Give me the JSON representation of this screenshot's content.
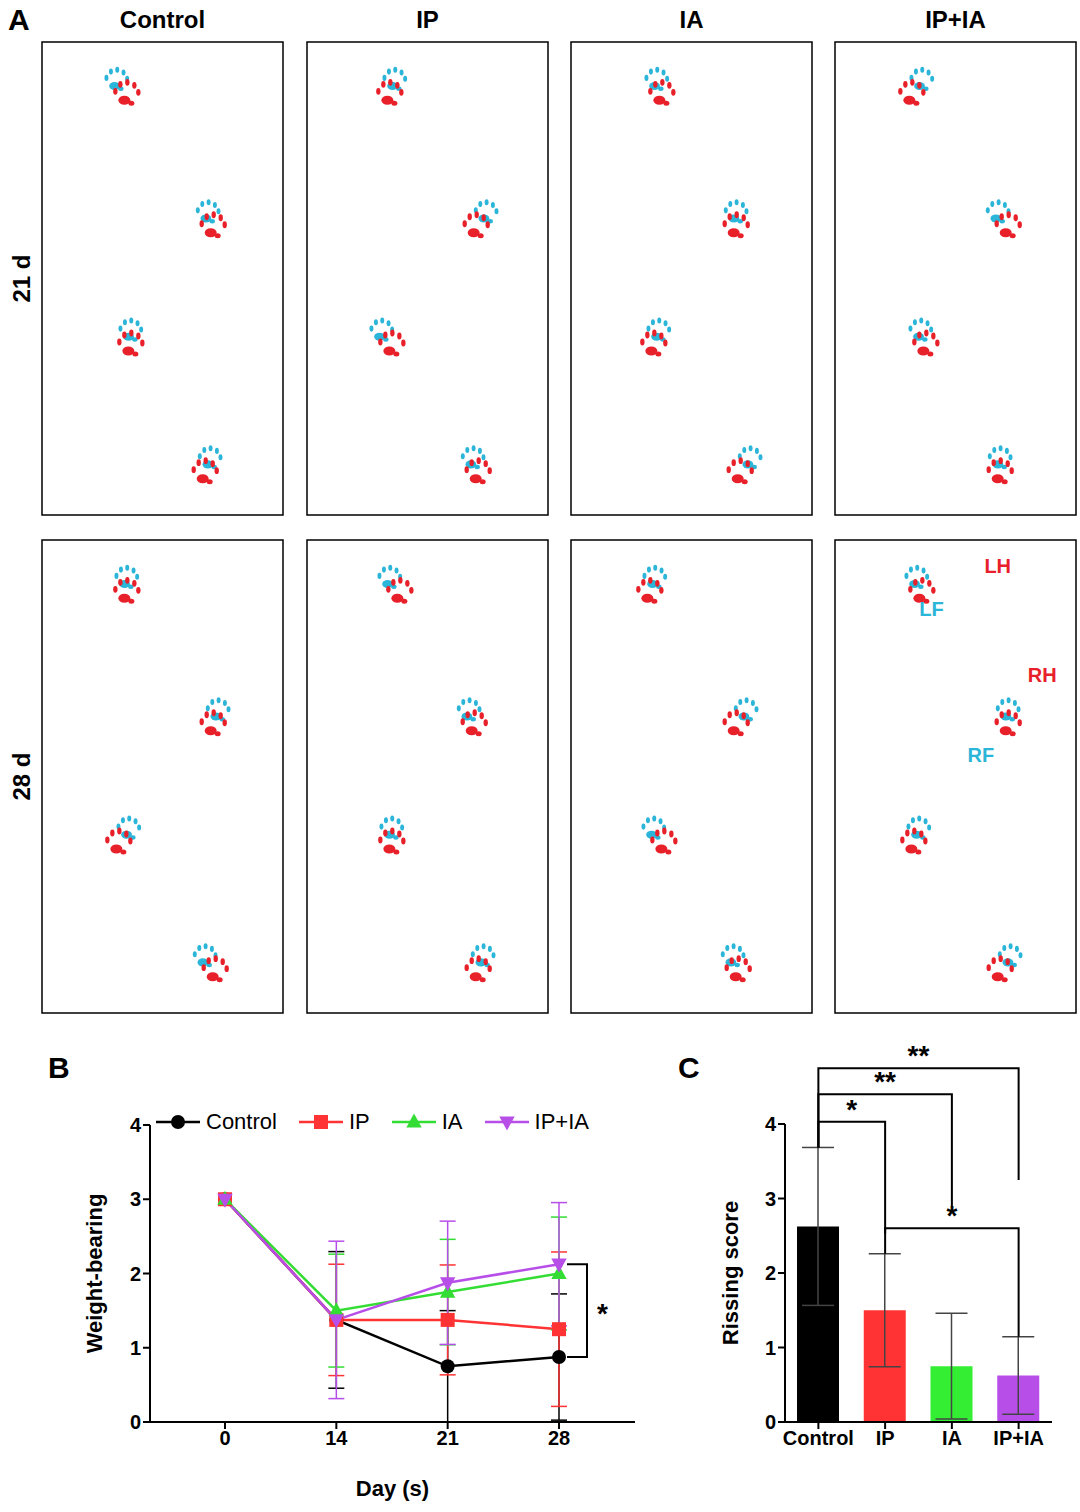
{
  "panel_a": {
    "label": "A",
    "columns": [
      "Control",
      "IP",
      "IA",
      "IP+IA"
    ],
    "rows": [
      "21 d",
      "28 d"
    ],
    "paw_labels": [
      {
        "text": "LH",
        "color": "#e8202a"
      },
      {
        "text": "LF",
        "color": "#2bb5d8"
      },
      {
        "text": "RH",
        "color": "#e8202a"
      },
      {
        "text": "RF",
        "color": "#2bb5d8"
      }
    ]
  },
  "chart_data": [
    {
      "label": "B",
      "type": "line",
      "x_label": "Day (s)",
      "y_label": "Weight-bearing",
      "categories": [
        "0",
        "14",
        "21",
        "28"
      ],
      "ylim": [
        0,
        4
      ],
      "yticks": [
        0,
        1,
        2,
        3,
        4
      ],
      "legend": "top",
      "series": [
        {
          "name": "Control",
          "color": "#000000",
          "marker": "circle",
          "values": [
            3,
            1.375,
            0.75,
            0.875
          ],
          "errors": [
            0,
            0.92,
            0.75,
            0.85
          ]
        },
        {
          "name": "IP",
          "color": "#ff3333",
          "marker": "square",
          "values": [
            3,
            1.375,
            1.375,
            1.25
          ],
          "errors": [
            0,
            0.75,
            0.74,
            1.04
          ]
        },
        {
          "name": "IA",
          "color": "#33dd33",
          "marker": "triangle",
          "values": [
            3,
            1.5,
            1.75,
            2.0
          ],
          "errors": [
            0,
            0.76,
            0.71,
            0.76
          ]
        },
        {
          "name": "IP+IA",
          "color": "#b84ee8",
          "marker": "triangle-down",
          "values": [
            3,
            1.375,
            1.875,
            2.125
          ],
          "errors": [
            0,
            1.06,
            0.83,
            0.83
          ]
        }
      ],
      "annotations": [
        {
          "x": "28",
          "from": "Control",
          "to": "IP+IA",
          "text": "*"
        }
      ]
    },
    {
      "label": "C",
      "type": "bar",
      "y_label": "Rissing score",
      "categories": [
        "Control",
        "IP",
        "IA",
        "IP+IA"
      ],
      "values": [
        2.625,
        1.5,
        0.75,
        0.625
      ],
      "errors": [
        1.06,
        0.76,
        0.71,
        0.52
      ],
      "colors": [
        "#000000",
        "#ff3333",
        "#33ee33",
        "#b84ee8"
      ],
      "ylim": [
        0,
        4
      ],
      "yticks": [
        0,
        1,
        2,
        3,
        4
      ],
      "annotations": [
        {
          "from": "Control",
          "to": "IP+IA",
          "text": "**",
          "y": 4.75
        },
        {
          "from": "Control",
          "to": "IA",
          "text": "**",
          "y": 4.4
        },
        {
          "from": "Control",
          "to": "IP",
          "text": "*",
          "y": 4.03
        },
        {
          "from": "IP",
          "to": "IP+IA",
          "text": "*",
          "y": 2.6
        }
      ]
    }
  ]
}
